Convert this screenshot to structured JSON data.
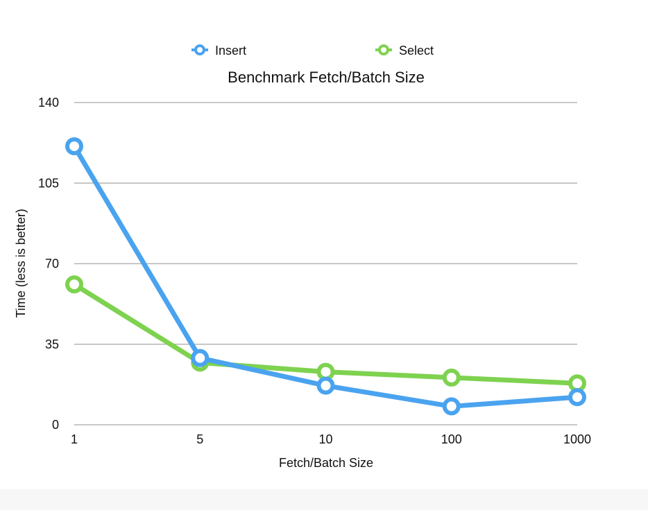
{
  "chart_data": {
    "type": "line",
    "title": "Benchmark Fetch/Batch Size",
    "xlabel": "Fetch/Batch Size",
    "ylabel": "Time (less is better)",
    "categories": [
      "1",
      "5",
      "10",
      "100",
      "1000"
    ],
    "yticks": [
      "0",
      "35",
      "70",
      "105",
      "140"
    ],
    "ylim": [
      0,
      140
    ],
    "grid": true,
    "legend_position": "top",
    "series": [
      {
        "name": "Insert",
        "color": "#4aa3ef",
        "values": [
          121,
          29,
          17,
          8,
          12
        ]
      },
      {
        "name": "Select",
        "color": "#7ed24f",
        "values": [
          61,
          27,
          23,
          20.5,
          18
        ]
      }
    ]
  }
}
